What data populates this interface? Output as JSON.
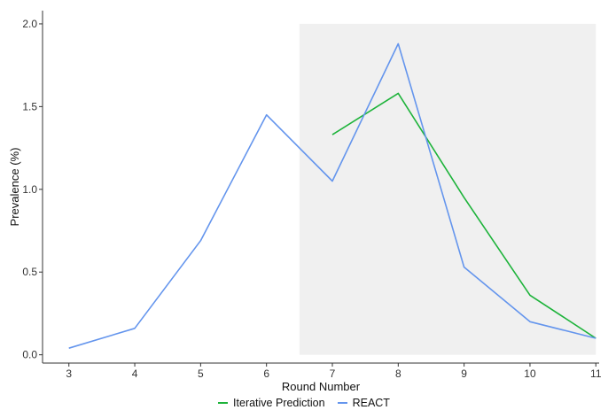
{
  "chart_data": {
    "type": "line",
    "title": "",
    "xlabel": "Round Number",
    "ylabel": "Prevalence (%)",
    "x_ticks": [
      3,
      4,
      5,
      6,
      7,
      8,
      9,
      10,
      11
    ],
    "y_ticks": [
      0.0,
      0.5,
      1.0,
      1.5,
      2.0
    ],
    "y_tick_labels": [
      "0.0",
      "0.5",
      "1.0",
      "1.5",
      "2.0"
    ],
    "xlim": [
      2.6,
      11.05
    ],
    "ylim": [
      -0.05,
      2.08
    ],
    "grid": false,
    "legend_position": "bottom",
    "shaded_region": {
      "x": [
        6.5,
        11
      ],
      "y": [
        0,
        2.0
      ],
      "color": "#f0f0f0"
    },
    "series": [
      {
        "name": "Iterative Prediction",
        "color": "#1db33a",
        "x": [
          7,
          8,
          9,
          10,
          11
        ],
        "values": [
          1.33,
          1.58,
          0.95,
          0.36,
          0.1
        ]
      },
      {
        "name": "REACT",
        "color": "#6495ed",
        "x": [
          3,
          4,
          5,
          6,
          7,
          8,
          9,
          10,
          11
        ],
        "values": [
          0.04,
          0.16,
          0.69,
          1.45,
          1.05,
          1.88,
          0.53,
          0.2,
          0.1
        ]
      }
    ]
  }
}
